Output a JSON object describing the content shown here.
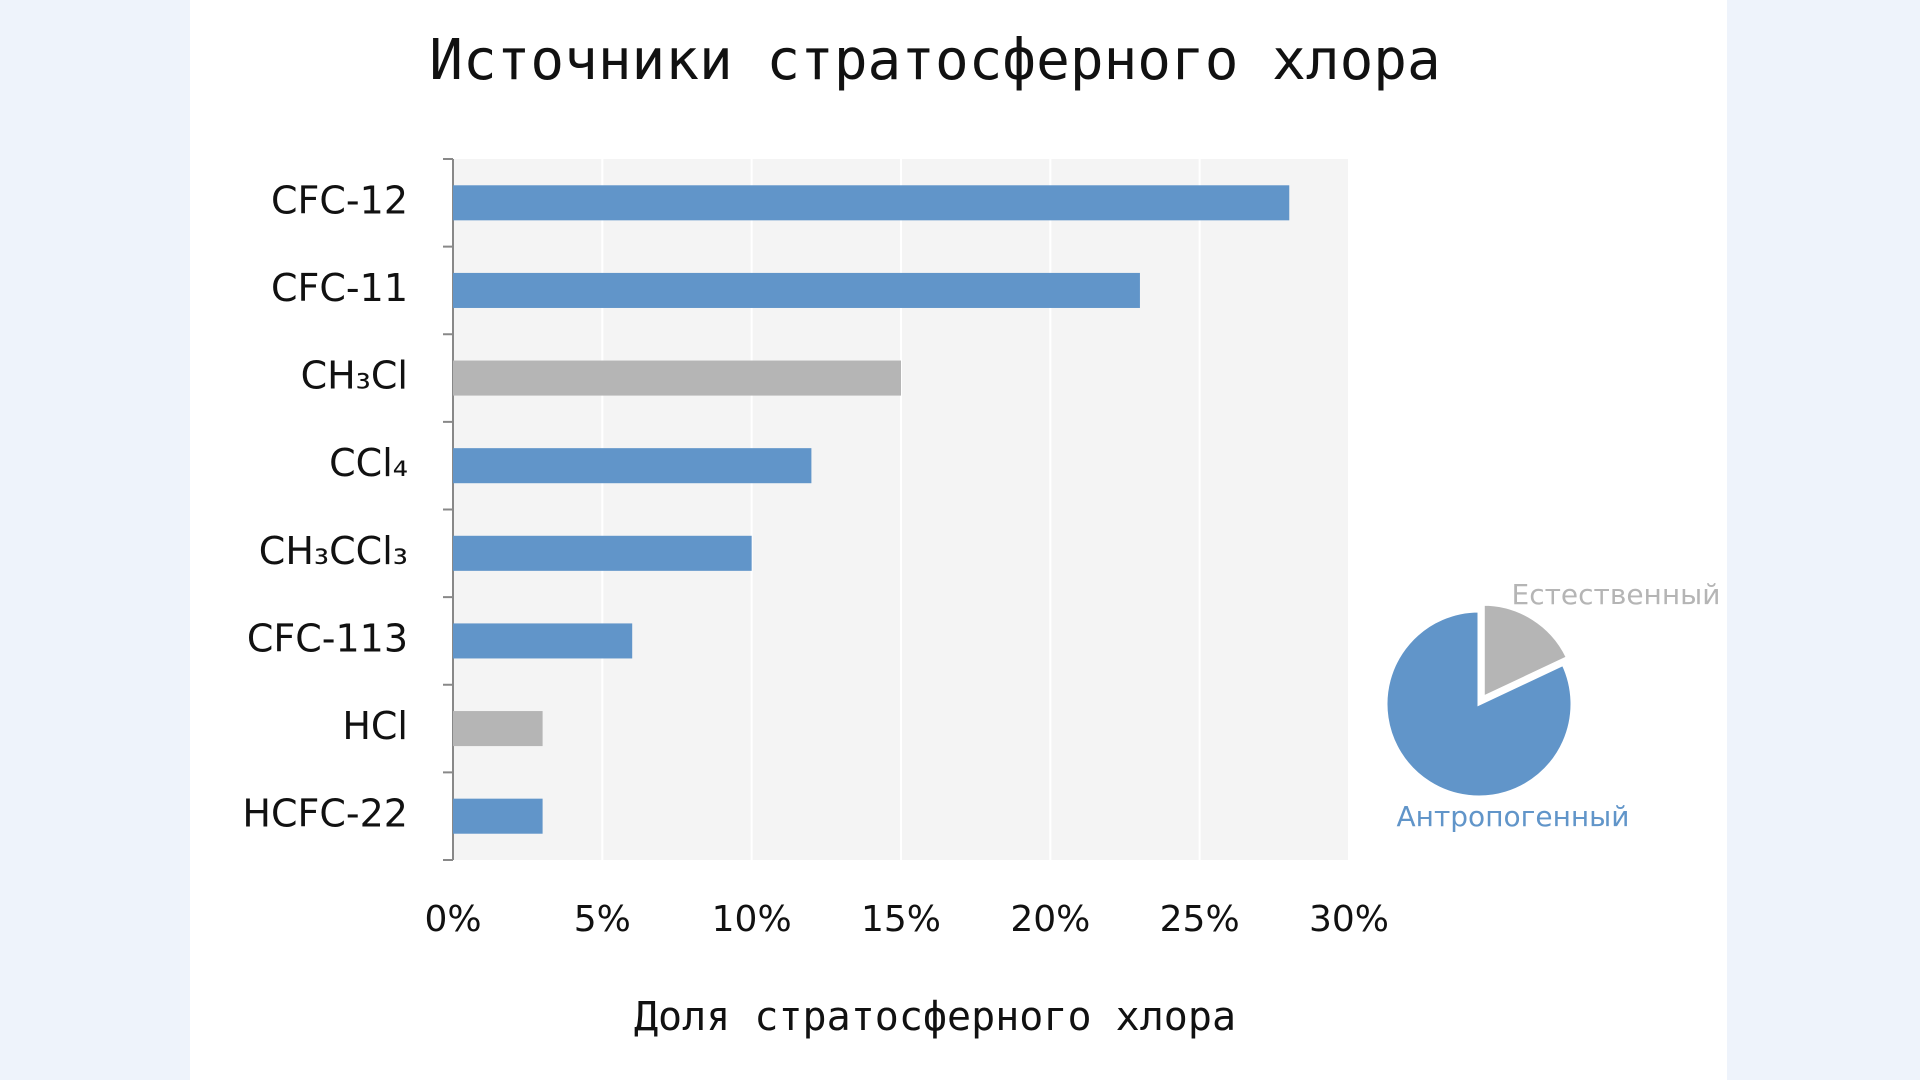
{
  "chart_data": [
    {
      "type": "bar",
      "orientation": "horizontal",
      "title": "Источники стратосферного хлора",
      "x_label": "Доля стратосферного хлора",
      "categories": [
        "CFC-12",
        "CFC-11",
        "CH₃Cl",
        "CCl₄",
        "CH₃CCl₃",
        "CFC-113",
        "HCl",
        "HCFC-22"
      ],
      "values": [
        28,
        23,
        15,
        12,
        10,
        6,
        3,
        3
      ],
      "colors": [
        "#6195c9",
        "#6195c9",
        "#b5b5b5",
        "#6195c9",
        "#6195c9",
        "#6195c9",
        "#b5b5b5",
        "#6195c9"
      ],
      "xlim": [
        0,
        30
      ],
      "xticks": [
        {
          "value": 0,
          "label": "0%"
        },
        {
          "value": 5,
          "label": "5%"
        },
        {
          "value": 10,
          "label": "10%"
        },
        {
          "value": 15,
          "label": "15%"
        },
        {
          "value": 20,
          "label": "20%"
        },
        {
          "value": 25,
          "label": "25%"
        },
        {
          "value": 30,
          "label": "30%"
        }
      ],
      "grid": true
    },
    {
      "type": "pie",
      "categories": [
        "Естественный",
        "Антропогенный"
      ],
      "values": [
        18,
        82
      ],
      "colors": [
        "#b5b5b5",
        "#6195c9"
      ]
    }
  ]
}
